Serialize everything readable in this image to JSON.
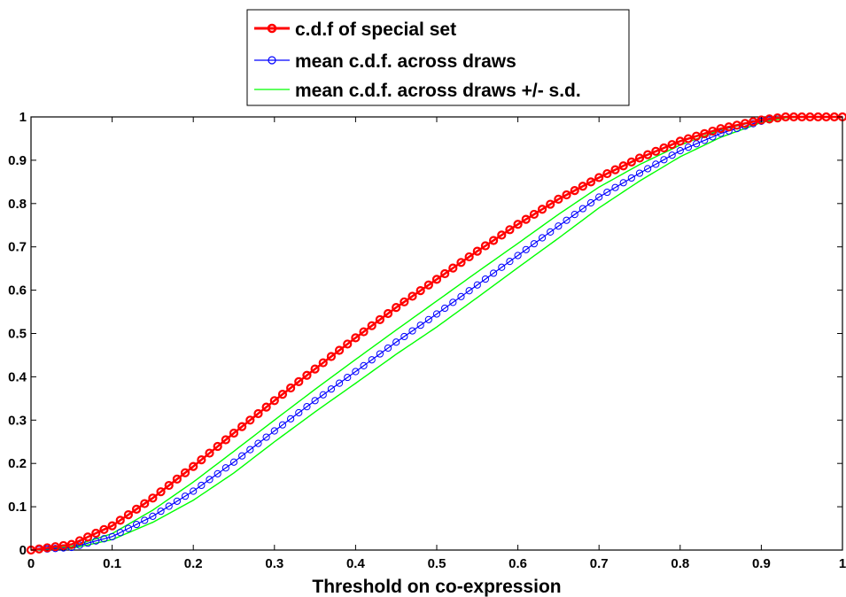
{
  "chart_data": {
    "type": "line",
    "xlabel": "Threshold on co-expression",
    "ylabel": "",
    "xlim": [
      0,
      1
    ],
    "ylim": [
      0,
      1
    ],
    "xticks": [
      "0",
      "0.1",
      "0.2",
      "0.3",
      "0.4",
      "0.5",
      "0.6",
      "0.7",
      "0.8",
      "0.9",
      "1"
    ],
    "yticks": [
      "0",
      "0.1",
      "0.2",
      "0.3",
      "0.4",
      "0.5",
      "0.6",
      "0.7",
      "0.8",
      "0.9",
      "1"
    ],
    "grid": false,
    "legend_position": "top-center outside",
    "x": [
      0,
      0.05,
      0.1,
      0.15,
      0.2,
      0.25,
      0.3,
      0.35,
      0.4,
      0.45,
      0.5,
      0.55,
      0.6,
      0.65,
      0.7,
      0.75,
      0.8,
      0.85,
      0.9,
      0.93,
      0.95,
      1.0
    ],
    "series": [
      {
        "name": "c.d.f of special set",
        "color": "#ff0000",
        "marker": "circle",
        "values": [
          0,
          0.013,
          0.056,
          0.12,
          0.193,
          0.27,
          0.345,
          0.418,
          0.49,
          0.56,
          0.625,
          0.69,
          0.752,
          0.81,
          0.86,
          0.905,
          0.944,
          0.973,
          0.993,
          1.0,
          1.0,
          1.0
        ]
      },
      {
        "name": "mean c.d.f. across draws",
        "color": "#0000ff",
        "marker": "circle",
        "values": [
          0,
          0.006,
          0.031,
          0.078,
          0.136,
          0.203,
          0.275,
          0.345,
          0.412,
          0.48,
          0.545,
          0.612,
          0.68,
          0.748,
          0.815,
          0.87,
          0.922,
          0.962,
          0.99,
          1.0,
          1.0,
          1.0
        ]
      },
      {
        "name": "mean c.d.f. across draws +/- s.d.",
        "color": "#00ff00",
        "marker": "none",
        "values": [
          0,
          0.008,
          0.038,
          0.092,
          0.157,
          0.228,
          0.3,
          0.371,
          0.44,
          0.508,
          0.575,
          0.642,
          0.708,
          0.775,
          0.838,
          0.89,
          0.935,
          0.97,
          0.993,
          1.0,
          1.0,
          1.0
        ],
        "lower_values": [
          0,
          0.004,
          0.024,
          0.064,
          0.115,
          0.178,
          0.25,
          0.319,
          0.385,
          0.452,
          0.515,
          0.583,
          0.652,
          0.72,
          0.79,
          0.852,
          0.908,
          0.953,
          0.987,
          0.998,
          1.0,
          1.0
        ]
      }
    ]
  }
}
